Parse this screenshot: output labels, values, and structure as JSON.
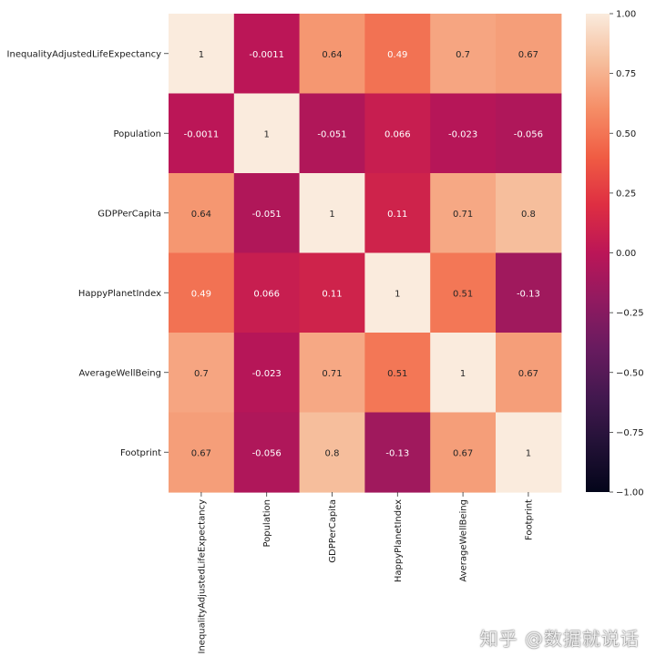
{
  "chart_data": {
    "type": "heatmap",
    "row_labels": [
      "InequalityAdjustedLifeExpectancy",
      "Population",
      "GDPPerCapita",
      "HappyPlanetIndex",
      "AverageWellBeing",
      "Footprint"
    ],
    "col_labels": [
      "InequalityAdjustedLifeExpectancy",
      "Population",
      "GDPPerCapita",
      "HappyPlanetIndex",
      "AverageWellBeing",
      "Footprint"
    ],
    "values": [
      [
        1,
        -0.0011,
        0.64,
        0.49,
        0.7,
        0.67
      ],
      [
        -0.0011,
        1,
        -0.051,
        0.066,
        -0.023,
        -0.056
      ],
      [
        0.64,
        -0.051,
        1,
        0.11,
        0.71,
        0.8
      ],
      [
        0.49,
        0.066,
        0.11,
        1,
        0.51,
        -0.13
      ],
      [
        0.7,
        -0.023,
        0.71,
        0.51,
        1,
        0.67
      ],
      [
        0.67,
        -0.056,
        0.8,
        -0.13,
        0.67,
        1
      ]
    ],
    "annotations": [
      [
        "1",
        "-0.0011",
        "0.64",
        "0.49",
        "0.7",
        "0.67"
      ],
      [
        "-0.0011",
        "1",
        "-0.051",
        "0.066",
        "-0.023",
        "-0.056"
      ],
      [
        "0.64",
        "-0.051",
        "1",
        "0.11",
        "0.71",
        "0.8"
      ],
      [
        "0.49",
        "0.066",
        "0.11",
        "1",
        "0.51",
        "-0.13"
      ],
      [
        "0.7",
        "-0.023",
        "0.71",
        "0.51",
        "1",
        "0.67"
      ],
      [
        "0.67",
        "-0.056",
        "0.8",
        "-0.13",
        "0.67",
        "1"
      ]
    ],
    "colormap": "rocket",
    "vmin": -1,
    "vmax": 1,
    "colorbar_ticks": [
      1.0,
      0.75,
      0.5,
      0.25,
      0.0,
      -0.25,
      -0.5,
      -0.75,
      -1.0
    ],
    "colorbar_tick_labels": [
      "1.00",
      "0.75",
      "0.50",
      "0.25",
      "0.00",
      "−0.25",
      "−0.50",
      "−0.75",
      "−1.00"
    ],
    "title": "",
    "xlabel": "",
    "ylabel": ""
  },
  "watermark": "知乎 @数据就说话"
}
